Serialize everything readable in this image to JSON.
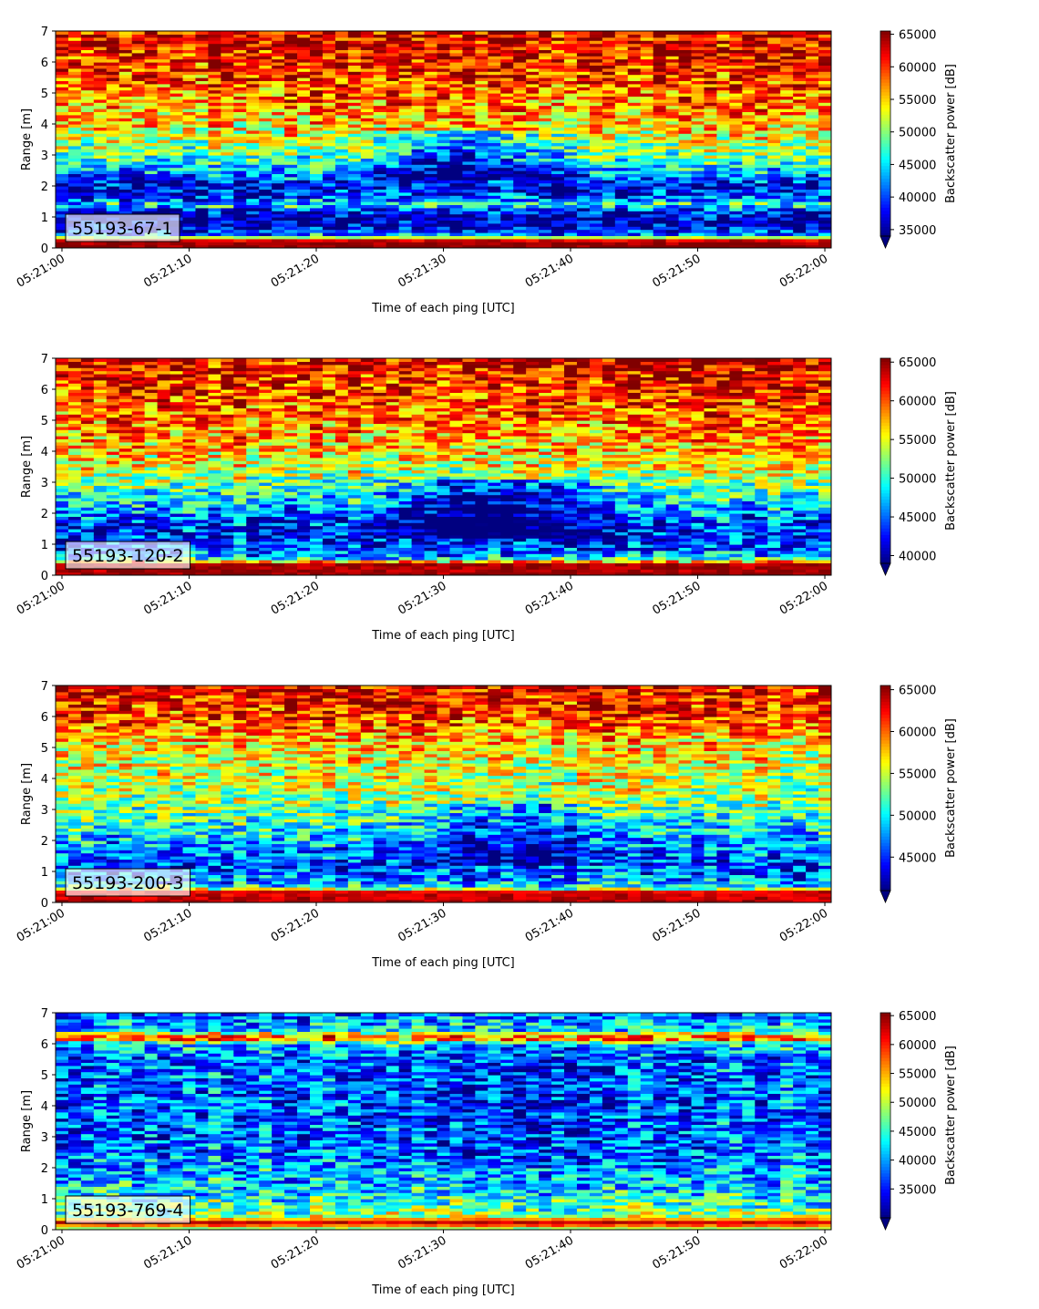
{
  "chart_data": [
    {
      "type": "heatmap",
      "label": "55193-67-1",
      "xlabel": "Time of each ping [UTC]",
      "ylabel": "Range [m]",
      "ylim": [
        0,
        7
      ],
      "yticks": [
        "0",
        "1",
        "2",
        "3",
        "4",
        "5",
        "6",
        "7"
      ],
      "xticks": [
        "05:21:00",
        "05:21:10",
        "05:21:20",
        "05:21:30",
        "05:21:40",
        "05:21:50",
        "05:22:00"
      ],
      "colorbar": {
        "label": "Backscatter power [dB]",
        "vmin": 34000,
        "vmax": 65500,
        "extend": "min",
        "ticks": [
          "35000",
          "40000",
          "45000",
          "50000",
          "55000",
          "60000",
          "65000"
        ]
      },
      "colormap": "jet",
      "seed": 11,
      "profile": [
        [
          0.0,
          1.0
        ],
        [
          0.18,
          0.98
        ],
        [
          0.26,
          0.9
        ],
        [
          0.33,
          0.62
        ],
        [
          0.4,
          0.34
        ],
        [
          0.6,
          0.1
        ],
        [
          0.95,
          0.05
        ],
        [
          1.2,
          0.12
        ],
        [
          1.4,
          0.42
        ],
        [
          1.55,
          0.25
        ],
        [
          2.0,
          0.1
        ],
        [
          2.5,
          0.3
        ],
        [
          3.2,
          0.52
        ],
        [
          4.0,
          0.68
        ],
        [
          5.0,
          0.78
        ],
        [
          6.0,
          0.86
        ],
        [
          7.0,
          0.9
        ]
      ],
      "dip": {
        "center_s": 32,
        "width_s": 6,
        "ymin": 2.2,
        "ymax": 3.8,
        "amount": 0.32
      }
    },
    {
      "type": "heatmap",
      "label": "55193-120-2",
      "xlabel": "Time of each ping [UTC]",
      "ylabel": "Range [m]",
      "ylim": [
        0,
        7
      ],
      "yticks": [
        "0",
        "1",
        "2",
        "3",
        "4",
        "5",
        "6",
        "7"
      ],
      "xticks": [
        "05:21:00",
        "05:21:10",
        "05:21:20",
        "05:21:30",
        "05:21:40",
        "05:21:50",
        "05:22:00"
      ],
      "colorbar": {
        "label": "Backscatter power [dB]",
        "vmin": 39000,
        "vmax": 65500,
        "extend": "min",
        "ticks": [
          "40000",
          "45000",
          "50000",
          "55000",
          "60000",
          "65000"
        ]
      },
      "colormap": "jet",
      "seed": 23,
      "profile": [
        [
          0.0,
          1.0
        ],
        [
          0.12,
          0.97
        ],
        [
          0.4,
          0.96
        ],
        [
          0.48,
          0.55
        ],
        [
          0.6,
          0.3
        ],
        [
          0.9,
          0.2
        ],
        [
          1.3,
          0.15
        ],
        [
          1.8,
          0.2
        ],
        [
          2.5,
          0.38
        ],
        [
          3.2,
          0.55
        ],
        [
          4.0,
          0.68
        ],
        [
          5.0,
          0.77
        ],
        [
          6.0,
          0.85
        ],
        [
          7.0,
          0.9
        ]
      ],
      "dip": {
        "center_s": 35,
        "width_s": 7,
        "ymin": 1.2,
        "ymax": 3.1,
        "amount": 0.32
      }
    },
    {
      "type": "heatmap",
      "label": "55193-200-3",
      "xlabel": "Time of each ping [UTC]",
      "ylabel": "Range [m]",
      "ylim": [
        0,
        7
      ],
      "yticks": [
        "0",
        "1",
        "2",
        "3",
        "4",
        "5",
        "6",
        "7"
      ],
      "xticks": [
        "05:21:00",
        "05:21:10",
        "05:21:20",
        "05:21:30",
        "05:21:40",
        "05:21:50",
        "05:22:00"
      ],
      "colorbar": {
        "label": "Backscatter power [dB]",
        "vmin": 41000,
        "vmax": 65500,
        "extend": "min",
        "ticks": [
          "45000",
          "50000",
          "55000",
          "60000",
          "65000"
        ]
      },
      "colormap": "jet",
      "seed": 37,
      "profile": [
        [
          0.0,
          0.95
        ],
        [
          0.2,
          0.92
        ],
        [
          0.35,
          0.9
        ],
        [
          0.45,
          0.55
        ],
        [
          0.6,
          0.3
        ],
        [
          1.0,
          0.2
        ],
        [
          1.5,
          0.22
        ],
        [
          2.2,
          0.35
        ],
        [
          3.0,
          0.48
        ],
        [
          4.0,
          0.57
        ],
        [
          5.0,
          0.63
        ],
        [
          6.0,
          0.82
        ],
        [
          7.0,
          0.88
        ]
      ],
      "dip": {
        "center_s": 36,
        "width_s": 8,
        "ymin": 1.2,
        "ymax": 3.2,
        "amount": 0.2
      }
    },
    {
      "type": "heatmap",
      "label": "55193-769-4",
      "xlabel": "Time of each ping [UTC]",
      "ylabel": "Range [m]",
      "ylim": [
        0,
        7
      ],
      "yticks": [
        "0",
        "1",
        "2",
        "3",
        "4",
        "5",
        "6",
        "7"
      ],
      "xticks": [
        "05:21:00",
        "05:21:10",
        "05:21:20",
        "05:21:30",
        "05:21:40",
        "05:21:50",
        "05:22:00"
      ],
      "colorbar": {
        "label": "Backscatter power [dB]",
        "vmin": 30000,
        "vmax": 65500,
        "extend": "min",
        "ticks": [
          "35000",
          "40000",
          "45000",
          "50000",
          "55000",
          "60000",
          "65000"
        ]
      },
      "colormap": "jet",
      "seed": 53,
      "profile": [
        [
          0.0,
          0.55
        ],
        [
          0.1,
          0.5
        ],
        [
          0.18,
          0.95
        ],
        [
          0.3,
          0.9
        ],
        [
          0.4,
          0.55
        ],
        [
          0.9,
          0.42
        ],
        [
          1.5,
          0.33
        ],
        [
          2.5,
          0.25
        ],
        [
          4.0,
          0.22
        ],
        [
          5.5,
          0.23
        ],
        [
          6.0,
          0.35
        ],
        [
          6.2,
          0.85
        ],
        [
          6.45,
          0.35
        ],
        [
          7.0,
          0.22
        ]
      ],
      "dip": {
        "center_s": 36,
        "width_s": 10,
        "ymin": 2.0,
        "ymax": 6.0,
        "amount": 0.08
      }
    }
  ]
}
